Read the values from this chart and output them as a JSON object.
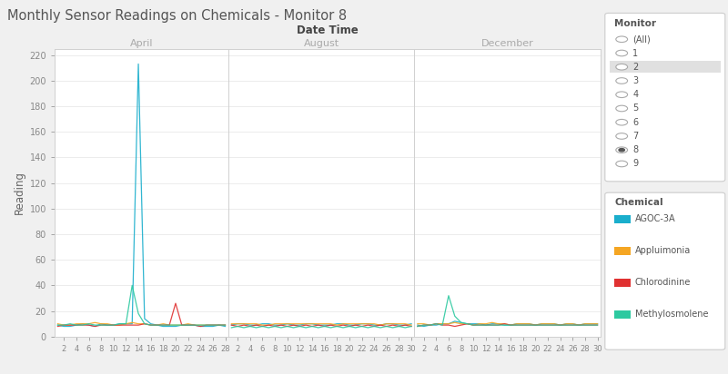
{
  "title": "Monthly Sensor Readings on Chemicals - Monitor 8",
  "xlabel": "Date Time",
  "ylabel": "Reading",
  "ylim": [
    0,
    225
  ],
  "yticks": [
    0,
    20,
    40,
    60,
    80,
    100,
    120,
    140,
    160,
    180,
    200,
    220
  ],
  "panel_labels": [
    "April",
    "August",
    "December"
  ],
  "panel_xticks_april": [
    2,
    4,
    6,
    8,
    10,
    12,
    14,
    16,
    18,
    20,
    22,
    24,
    26,
    28
  ],
  "panel_xticks_aug": [
    2,
    4,
    6,
    8,
    10,
    12,
    14,
    16,
    18,
    20,
    22,
    24,
    26,
    28,
    30
  ],
  "panel_xticks_dec": [
    2,
    4,
    6,
    8,
    10,
    12,
    14,
    16,
    18,
    20,
    22,
    24,
    26,
    28,
    30
  ],
  "chemicals": [
    "AGOC-3A",
    "Appluimonia",
    "Chlorodinine",
    "Methylosmolene"
  ],
  "colors": [
    "#1AAECC",
    "#F5A623",
    "#E03131",
    "#2DC9A0"
  ],
  "background_color": "#F0F0F0",
  "panel_bg": "#FFFFFF",
  "legend_monitor_items": [
    "(All)",
    "1",
    "2",
    "3",
    "4",
    "5",
    "6",
    "7",
    "8",
    "9"
  ],
  "selected_monitor": "8",
  "highlighted_monitor": "2",
  "april_days": [
    1,
    2,
    3,
    4,
    5,
    6,
    7,
    8,
    9,
    10,
    11,
    12,
    13,
    14,
    15,
    16,
    17,
    18,
    19,
    20,
    21,
    22,
    23,
    24,
    25,
    26,
    27,
    28
  ],
  "august_days": [
    1,
    2,
    3,
    4,
    5,
    6,
    7,
    8,
    9,
    10,
    11,
    12,
    13,
    14,
    15,
    16,
    17,
    18,
    19,
    20,
    21,
    22,
    23,
    24,
    25,
    26,
    27,
    28,
    29,
    30
  ],
  "december_days": [
    1,
    2,
    3,
    4,
    5,
    6,
    7,
    8,
    9,
    10,
    11,
    12,
    13,
    14,
    15,
    16,
    17,
    18,
    19,
    20,
    21,
    22,
    23,
    24,
    25,
    26,
    27,
    28,
    29,
    30
  ],
  "april_AGOC": [
    9,
    8,
    8,
    9,
    10,
    9,
    8,
    10,
    9,
    9,
    10,
    10,
    10,
    213,
    14,
    10,
    9,
    8,
    8,
    8,
    9,
    9,
    9,
    8,
    8,
    8,
    9,
    8
  ],
  "april_Appluimonia": [
    10,
    9,
    9,
    10,
    10,
    10,
    11,
    10,
    10,
    9,
    9,
    10,
    11,
    10,
    10,
    9,
    9,
    10,
    9,
    9,
    9,
    10,
    9,
    9,
    9,
    9,
    9,
    9
  ],
  "april_Chlorodinine": [
    8,
    9,
    9,
    9,
    9,
    9,
    8,
    9,
    9,
    9,
    9,
    9,
    9,
    9,
    10,
    9,
    9,
    9,
    9,
    26,
    9,
    9,
    9,
    8,
    9,
    9,
    9,
    9
  ],
  "april_Methylosmolene": [
    9,
    9,
    10,
    9,
    9,
    10,
    9,
    9,
    9,
    9,
    10,
    10,
    40,
    18,
    10,
    9,
    9,
    9,
    9,
    9,
    9,
    9,
    9,
    9,
    9,
    9,
    9,
    9
  ],
  "august_AGOC": [
    9,
    10,
    10,
    9,
    9,
    10,
    10,
    9,
    9,
    10,
    9,
    9,
    10,
    10,
    9,
    9,
    9,
    10,
    10,
    9,
    9,
    10,
    10,
    9,
    9,
    10,
    10,
    9,
    9,
    10
  ],
  "august_Appluimonia": [
    10,
    10,
    10,
    10,
    10,
    9,
    9,
    10,
    10,
    10,
    10,
    10,
    10,
    10,
    10,
    10,
    10,
    9,
    10,
    10,
    10,
    10,
    10,
    10,
    9,
    10,
    10,
    10,
    10,
    9
  ],
  "august_Chlorodinine": [
    9,
    8,
    9,
    8,
    9,
    8,
    9,
    8,
    9,
    8,
    9,
    8,
    9,
    8,
    9,
    8,
    9,
    8,
    9,
    8,
    9,
    8,
    9,
    8,
    9,
    8,
    9,
    8,
    9,
    8
  ],
  "august_Methylosmolene": [
    7,
    8,
    7,
    8,
    7,
    8,
    7,
    8,
    7,
    8,
    7,
    8,
    7,
    8,
    7,
    8,
    7,
    8,
    7,
    8,
    7,
    8,
    7,
    8,
    7,
    8,
    7,
    8,
    7,
    8
  ],
  "december_AGOC": [
    9,
    8,
    9,
    9,
    10,
    10,
    12,
    11,
    10,
    10,
    10,
    9,
    10,
    10,
    9,
    9,
    10,
    10,
    10,
    9,
    10,
    10,
    10,
    9,
    10,
    10,
    9,
    10,
    10,
    10
  ],
  "december_Appluimonia": [
    10,
    10,
    9,
    10,
    10,
    10,
    11,
    10,
    10,
    9,
    10,
    10,
    11,
    10,
    10,
    9,
    10,
    10,
    10,
    9,
    10,
    10,
    10,
    9,
    10,
    10,
    9,
    10,
    10,
    10
  ],
  "december_Chlorodinine": [
    8,
    9,
    9,
    10,
    9,
    9,
    8,
    9,
    10,
    9,
    9,
    9,
    9,
    9,
    10,
    9,
    9,
    9,
    9,
    9,
    9,
    9,
    9,
    9,
    9,
    9,
    9,
    9,
    9,
    9
  ],
  "december_Methylosmolene": [
    8,
    9,
    9,
    10,
    9,
    32,
    16,
    11,
    10,
    9,
    9,
    9,
    9,
    9,
    9,
    9,
    9,
    9,
    9,
    9,
    9,
    9,
    9,
    9,
    9,
    9,
    9,
    9,
    9,
    9
  ]
}
